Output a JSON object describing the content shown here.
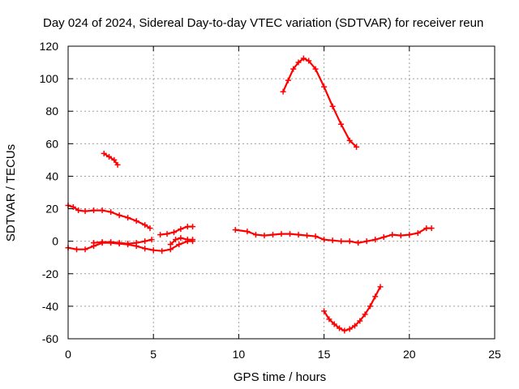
{
  "chart_data": {
    "type": "scatter",
    "title": "Day 024 of 2024, Sidereal Day-to-day VTEC variation (SDTVAR) for receiver reun",
    "xlabel": "GPS time / hours",
    "ylabel": "SDTVAR / TECUs",
    "xlim": [
      0,
      25
    ],
    "ylim": [
      -60,
      120
    ],
    "xticks": [
      0,
      5,
      10,
      15,
      20,
      25
    ],
    "yticks": [
      -60,
      -40,
      -20,
      0,
      20,
      40,
      60,
      80,
      100,
      120
    ],
    "grid": true,
    "color": "#ff0000",
    "marker": "plus",
    "series": [
      {
        "name": "trace-a",
        "x": [
          0.0,
          0.3,
          0.6,
          1.0,
          1.5,
          2.0,
          2.5,
          3.0,
          3.5,
          4.0,
          4.5,
          4.8
        ],
        "y": [
          22,
          21,
          19,
          18.5,
          19,
          19,
          18,
          16,
          14.5,
          12.5,
          10,
          8
        ]
      },
      {
        "name": "trace-b",
        "x": [
          2.1,
          2.4,
          2.7,
          2.9
        ],
        "y": [
          54,
          52,
          50,
          47
        ]
      },
      {
        "name": "trace-c",
        "x": [
          0.0,
          0.5,
          1.0,
          1.5,
          2.0,
          2.5,
          3.0,
          3.5,
          4.0,
          4.5,
          5.0,
          5.5,
          6.0,
          6.5,
          7.0,
          7.3
        ],
        "y": [
          -4,
          -5,
          -5,
          -3,
          -1,
          -1,
          -1.5,
          -2,
          -3,
          -4.5,
          -5.5,
          -6,
          -5,
          -2,
          0,
          0
        ]
      },
      {
        "name": "trace-d",
        "x": [
          1.5,
          2.0,
          2.5,
          3.0,
          3.5,
          4.0,
          4.5,
          4.9
        ],
        "y": [
          -1,
          -0.5,
          -0.5,
          -1,
          -1.5,
          -1,
          0,
          1
        ]
      },
      {
        "name": "trace-e",
        "x": [
          5.4,
          5.8,
          6.2,
          6.6,
          7.0,
          7.3
        ],
        "y": [
          4,
          4.5,
          5.5,
          7.5,
          9,
          9
        ]
      },
      {
        "name": "trace-f",
        "x": [
          6.0,
          6.3,
          6.6,
          7.0,
          7.3
        ],
        "y": [
          -2,
          1,
          2,
          1,
          1
        ]
      },
      {
        "name": "trace-g",
        "x": [
          9.8,
          10.5,
          11.0,
          11.5,
          12.0,
          12.5,
          13.0,
          13.5,
          14.0,
          14.5,
          15.0,
          15.5,
          16.0,
          16.5,
          17.0,
          17.5,
          18.0,
          18.5,
          19.0,
          19.5,
          20.0,
          20.5,
          21.0,
          21.3
        ],
        "y": [
          7,
          6,
          4,
          3.5,
          4,
          4.5,
          4.5,
          4,
          3.5,
          3,
          1,
          0.5,
          0,
          0,
          -1,
          0,
          1,
          2.5,
          4,
          3.5,
          4,
          5,
          8,
          8
        ]
      },
      {
        "name": "trace-h",
        "x": [
          12.6,
          12.9,
          13.2,
          13.5,
          13.8,
          14.1,
          14.5,
          15.0,
          15.5,
          16.0,
          16.5,
          16.9
        ],
        "y": [
          92,
          99,
          106,
          110,
          112.5,
          111,
          106,
          95,
          83,
          72,
          62,
          58
        ]
      },
      {
        "name": "trace-i",
        "x": [
          15.0,
          15.3,
          15.6,
          15.9,
          16.2,
          16.5,
          16.8,
          17.1,
          17.4,
          17.7,
          18.0,
          18.3
        ],
        "y": [
          -43,
          -48,
          -51,
          -53.5,
          -55,
          -54,
          -52,
          -49,
          -45,
          -40,
          -34,
          -28
        ]
      }
    ]
  }
}
